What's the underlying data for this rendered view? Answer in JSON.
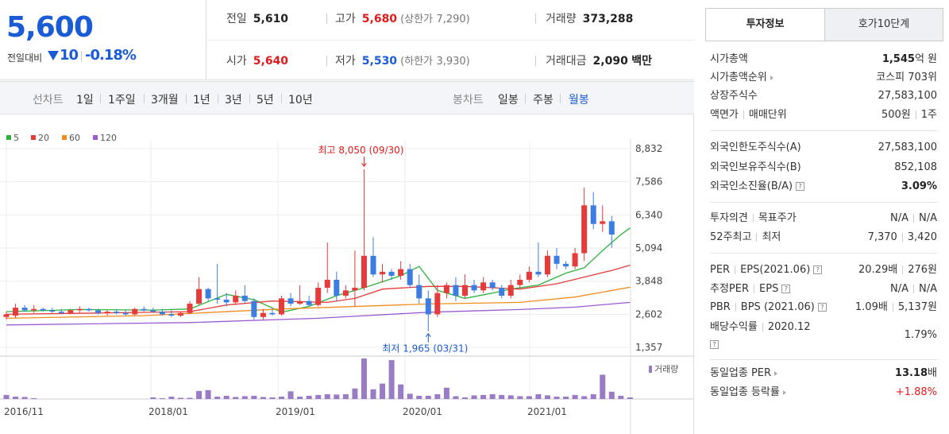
{
  "price": {
    "current": "5,600",
    "diff_label": "전일대비",
    "diff_value": "10",
    "diff_rate": "-0.18%"
  },
  "summary": {
    "prev_close_label": "전일",
    "prev_close": "5,610",
    "high_label": "고가",
    "high": "5,680",
    "upper_limit_label": "(상한가",
    "upper_limit": "7,290)",
    "volume_label": "거래량",
    "volume": "373,288",
    "open_label": "시가",
    "open": "5,640",
    "low_label": "저가",
    "low": "5,530",
    "lower_limit_label": "(하한가",
    "lower_limit": "3,930)",
    "amount_label": "거래대금",
    "amount": "2,090",
    "amount_unit": "백만"
  },
  "period_bar": {
    "line_label": "선차트",
    "line_options": [
      "1일",
      "1주일",
      "3개월",
      "1년",
      "3년",
      "5년",
      "10년"
    ],
    "candle_label": "봉차트",
    "candle_options": [
      "일봉",
      "주봉",
      "월봉"
    ],
    "active": "월봉"
  },
  "chart_data": {
    "type": "candlestick",
    "legend": [
      {
        "name": "5",
        "color": "#2db33d"
      },
      {
        "name": "20",
        "color": "#e53b3b"
      },
      {
        "name": "60",
        "color": "#f08c1e"
      },
      {
        "name": "120",
        "color": "#9a5cd0"
      }
    ],
    "y_ticks": [
      "8,832",
      "7,586",
      "6,340",
      "5,094",
      "3,848",
      "2,602",
      "1,357"
    ],
    "ylim": [
      1357,
      8832
    ],
    "x_ticks": [
      "2016/11",
      "2018/01",
      "2019/01",
      "2020/01",
      "2021/01"
    ],
    "volume_legend": "거래량",
    "high_annotation": "최고 8,050 (09/30)",
    "low_annotation": "최저 1,965 (03/31)",
    "candles": [
      {
        "o": 2500,
        "h": 2700,
        "l": 2400,
        "c": 2600
      },
      {
        "o": 2550,
        "h": 3000,
        "l": 2450,
        "c": 2850
      },
      {
        "o": 2850,
        "h": 2950,
        "l": 2700,
        "c": 2750
      },
      {
        "o": 2750,
        "h": 2950,
        "l": 2650,
        "c": 2800
      },
      {
        "o": 2800,
        "h": 2850,
        "l": 2700,
        "c": 2750
      },
      {
        "o": 2750,
        "h": 2850,
        "l": 2650,
        "c": 2700
      },
      {
        "o": 2700,
        "h": 2800,
        "l": 2600,
        "c": 2650
      },
      {
        "o": 2650,
        "h": 2800,
        "l": 2600,
        "c": 2750
      },
      {
        "o": 2750,
        "h": 2900,
        "l": 2650,
        "c": 2800
      },
      {
        "o": 2800,
        "h": 2850,
        "l": 2700,
        "c": 2750
      },
      {
        "o": 2750,
        "h": 2800,
        "l": 2600,
        "c": 2650
      },
      {
        "o": 2650,
        "h": 2750,
        "l": 2550,
        "c": 2700
      },
      {
        "o": 2700,
        "h": 2800,
        "l": 2600,
        "c": 2650
      },
      {
        "o": 2650,
        "h": 2750,
        "l": 2550,
        "c": 2600
      },
      {
        "o": 2600,
        "h": 2850,
        "l": 2550,
        "c": 2800
      },
      {
        "o": 2800,
        "h": 2900,
        "l": 2700,
        "c": 2750
      },
      {
        "o": 2750,
        "h": 2850,
        "l": 2650,
        "c": 2700
      },
      {
        "o": 2700,
        "h": 2800,
        "l": 2550,
        "c": 2600
      },
      {
        "o": 2600,
        "h": 2750,
        "l": 2500,
        "c": 2550
      },
      {
        "o": 2550,
        "h": 2700,
        "l": 2500,
        "c": 2650
      },
      {
        "o": 2650,
        "h": 3100,
        "l": 2600,
        "c": 3000
      },
      {
        "o": 3000,
        "h": 4000,
        "l": 2950,
        "c": 3550
      },
      {
        "o": 3550,
        "h": 3600,
        "l": 3100,
        "c": 3200
      },
      {
        "o": 3200,
        "h": 4500,
        "l": 3000,
        "c": 3150
      },
      {
        "o": 3150,
        "h": 3400,
        "l": 2900,
        "c": 3050
      },
      {
        "o": 3050,
        "h": 3500,
        "l": 2950,
        "c": 3300
      },
      {
        "o": 3300,
        "h": 3700,
        "l": 3000,
        "c": 3100
      },
      {
        "o": 3100,
        "h": 3200,
        "l": 2400,
        "c": 2500
      },
      {
        "o": 2500,
        "h": 2800,
        "l": 2400,
        "c": 2650
      },
      {
        "o": 2650,
        "h": 2800,
        "l": 2550,
        "c": 2600
      },
      {
        "o": 2600,
        "h": 3300,
        "l": 2550,
        "c": 3200
      },
      {
        "o": 3200,
        "h": 3400,
        "l": 2900,
        "c": 3000
      },
      {
        "o": 3000,
        "h": 3700,
        "l": 2950,
        "c": 3100
      },
      {
        "o": 3100,
        "h": 3300,
        "l": 2900,
        "c": 2950
      },
      {
        "o": 2950,
        "h": 3800,
        "l": 2900,
        "c": 3600
      },
      {
        "o": 3600,
        "h": 5300,
        "l": 3400,
        "c": 3900
      },
      {
        "o": 3900,
        "h": 4200,
        "l": 3100,
        "c": 3300
      },
      {
        "o": 3300,
        "h": 3700,
        "l": 3200,
        "c": 3500
      },
      {
        "o": 3500,
        "h": 5000,
        "l": 2900,
        "c": 3600
      },
      {
        "o": 3600,
        "h": 8050,
        "l": 3500,
        "c": 4800
      },
      {
        "o": 4800,
        "h": 5500,
        "l": 4000,
        "c": 4100
      },
      {
        "o": 4100,
        "h": 4500,
        "l": 3800,
        "c": 4200
      },
      {
        "o": 4200,
        "h": 4300,
        "l": 3900,
        "c": 4050
      },
      {
        "o": 4050,
        "h": 4600,
        "l": 3900,
        "c": 4300
      },
      {
        "o": 4300,
        "h": 4500,
        "l": 3600,
        "c": 3700
      },
      {
        "o": 3700,
        "h": 4100,
        "l": 3000,
        "c": 3200
      },
      {
        "o": 3200,
        "h": 3500,
        "l": 1965,
        "c": 2600
      },
      {
        "o": 2600,
        "h": 3700,
        "l": 2500,
        "c": 3400
      },
      {
        "o": 3400,
        "h": 3800,
        "l": 3200,
        "c": 3700
      },
      {
        "o": 3700,
        "h": 4000,
        "l": 3100,
        "c": 3300
      },
      {
        "o": 3300,
        "h": 4100,
        "l": 3200,
        "c": 3700
      },
      {
        "o": 3700,
        "h": 3900,
        "l": 3400,
        "c": 3500
      },
      {
        "o": 3500,
        "h": 4000,
        "l": 3400,
        "c": 3800
      },
      {
        "o": 3800,
        "h": 3900,
        "l": 3500,
        "c": 3600
      },
      {
        "o": 3600,
        "h": 3700,
        "l": 3200,
        "c": 3300
      },
      {
        "o": 3300,
        "h": 3900,
        "l": 3200,
        "c": 3700
      },
      {
        "o": 3700,
        "h": 4100,
        "l": 3600,
        "c": 3900
      },
      {
        "o": 3900,
        "h": 4400,
        "l": 3800,
        "c": 4200
      },
      {
        "o": 4200,
        "h": 5300,
        "l": 4000,
        "c": 4100
      },
      {
        "o": 4100,
        "h": 5000,
        "l": 4000,
        "c": 4800
      },
      {
        "o": 4800,
        "h": 5100,
        "l": 4300,
        "c": 4500
      },
      {
        "o": 4500,
        "h": 4600,
        "l": 4300,
        "c": 4400
      },
      {
        "o": 4400,
        "h": 5100,
        "l": 4300,
        "c": 4900
      },
      {
        "o": 4900,
        "h": 7370,
        "l": 4600,
        "c": 6700
      },
      {
        "o": 6700,
        "h": 7200,
        "l": 5800,
        "c": 6000
      },
      {
        "o": 6000,
        "h": 6700,
        "l": 5700,
        "c": 6100
      },
      {
        "o": 6100,
        "h": 6300,
        "l": 5100,
        "c": 5600
      }
    ],
    "ma": {
      "ma5": [
        [
          0,
          2700
        ],
        [
          8,
          2780
        ],
        [
          16,
          2760
        ],
        [
          20,
          2800
        ],
        [
          24,
          3350
        ],
        [
          27,
          3150
        ],
        [
          30,
          2680
        ],
        [
          33,
          2900
        ],
        [
          36,
          3300
        ],
        [
          39,
          3600
        ],
        [
          43,
          4050
        ],
        [
          45,
          4400
        ],
        [
          47,
          3500
        ],
        [
          50,
          3200
        ],
        [
          53,
          3400
        ],
        [
          55,
          3550
        ],
        [
          58,
          3700
        ],
        [
          61,
          4150
        ],
        [
          63,
          4350
        ],
        [
          65,
          5000
        ],
        [
          67,
          5600
        ],
        [
          68,
          5850
        ]
      ],
      "ma20": [
        [
          0,
          2600
        ],
        [
          10,
          2650
        ],
        [
          20,
          2700
        ],
        [
          24,
          2950
        ],
        [
          29,
          3100
        ],
        [
          35,
          3050
        ],
        [
          38,
          3200
        ],
        [
          41,
          3550
        ],
        [
          46,
          3650
        ],
        [
          50,
          3650
        ],
        [
          56,
          3550
        ],
        [
          60,
          3750
        ],
        [
          63,
          4000
        ],
        [
          66,
          4250
        ],
        [
          68,
          4450
        ]
      ],
      "ma60": [
        [
          0,
          2450
        ],
        [
          15,
          2550
        ],
        [
          30,
          2800
        ],
        [
          46,
          2990
        ],
        [
          56,
          3050
        ],
        [
          62,
          3250
        ],
        [
          68,
          3620
        ]
      ],
      "ma120": [
        [
          0,
          2200
        ],
        [
          20,
          2290
        ],
        [
          34,
          2450
        ],
        [
          46,
          2680
        ],
        [
          56,
          2780
        ],
        [
          62,
          2870
        ],
        [
          68,
          3050
        ]
      ]
    },
    "volume": [
      0.1,
      0.06,
      0.05,
      0.02,
      0.0,
      0.0,
      0.0,
      0.0,
      0.0,
      0.0,
      0.0,
      0.0,
      0.0,
      0.0,
      0.0,
      0.0,
      0.04,
      0.02,
      0.06,
      0.03,
      0.03,
      0.2,
      0.22,
      0.06,
      0.08,
      0.05,
      0.07,
      0.08,
      0.05,
      0.04,
      0.06,
      0.19,
      0.06,
      0.08,
      0.1,
      0.12,
      0.11,
      0.12,
      0.26,
      1.0,
      0.24,
      0.38,
      0.96,
      0.36,
      0.13,
      0.08,
      0.08,
      0.12,
      0.28,
      0.07,
      0.04,
      0.09,
      0.1,
      0.12,
      0.1,
      0.09,
      0.07,
      0.07,
      0.12,
      0.09,
      0.06,
      0.06,
      0.1,
      0.07,
      0.12,
      0.6,
      0.18,
      0.08,
      0.04
    ]
  },
  "tabs": {
    "invest": "투자정보",
    "ask": "호가10단계"
  },
  "info": {
    "market_cap_label": "시가총액",
    "market_cap_value": "1,545",
    "market_cap_unit": "억 원",
    "rank_label": "시가총액순위",
    "rank_value": "코스피 703위",
    "shares_label": "상장주식수",
    "shares_value": "27,583,100",
    "face_label": "액면가",
    "trade_unit_label": "매매단위",
    "face_value": "500원",
    "trade_unit_value": "1주",
    "foreign_limit_label": "외국인한도주식수(A)",
    "foreign_limit_value": "27,583,100",
    "foreign_hold_label": "외국인보유주식수(B)",
    "foreign_hold_value": "852,108",
    "foreign_ratio_label": "외국인소진율(B/A)",
    "foreign_ratio_value": "3.09%",
    "opinion_label": "투자의견",
    "target_label": "목표주가",
    "opinion_value": "N/A",
    "target_value": "N/A",
    "w52_high_label": "52주최고",
    "w52_low_label": "최저",
    "w52_high_value": "7,370",
    "w52_low_value": "3,420",
    "per_label": "PER",
    "eps_label": "EPS(2021.06)",
    "per_value": "20.29배",
    "eps_value": "276원",
    "est_per_label": "추정PER",
    "est_eps_label": "EPS",
    "est_per_value": "N/A",
    "est_eps_value": "N/A",
    "pbr_label": "PBR",
    "bps_label": "BPS (2021.06)",
    "pbr_value": "1.09배",
    "bps_value": "5,137원",
    "div_label": "배당수익률",
    "div_date": "2020.12",
    "div_value": "1.79%",
    "sector_per_label": "동일업종 PER",
    "sector_per_value": "13.18",
    "sector_per_unit": "배",
    "sector_rate_label": "동일업종 등락률",
    "sector_rate_value": "+1.88%"
  }
}
